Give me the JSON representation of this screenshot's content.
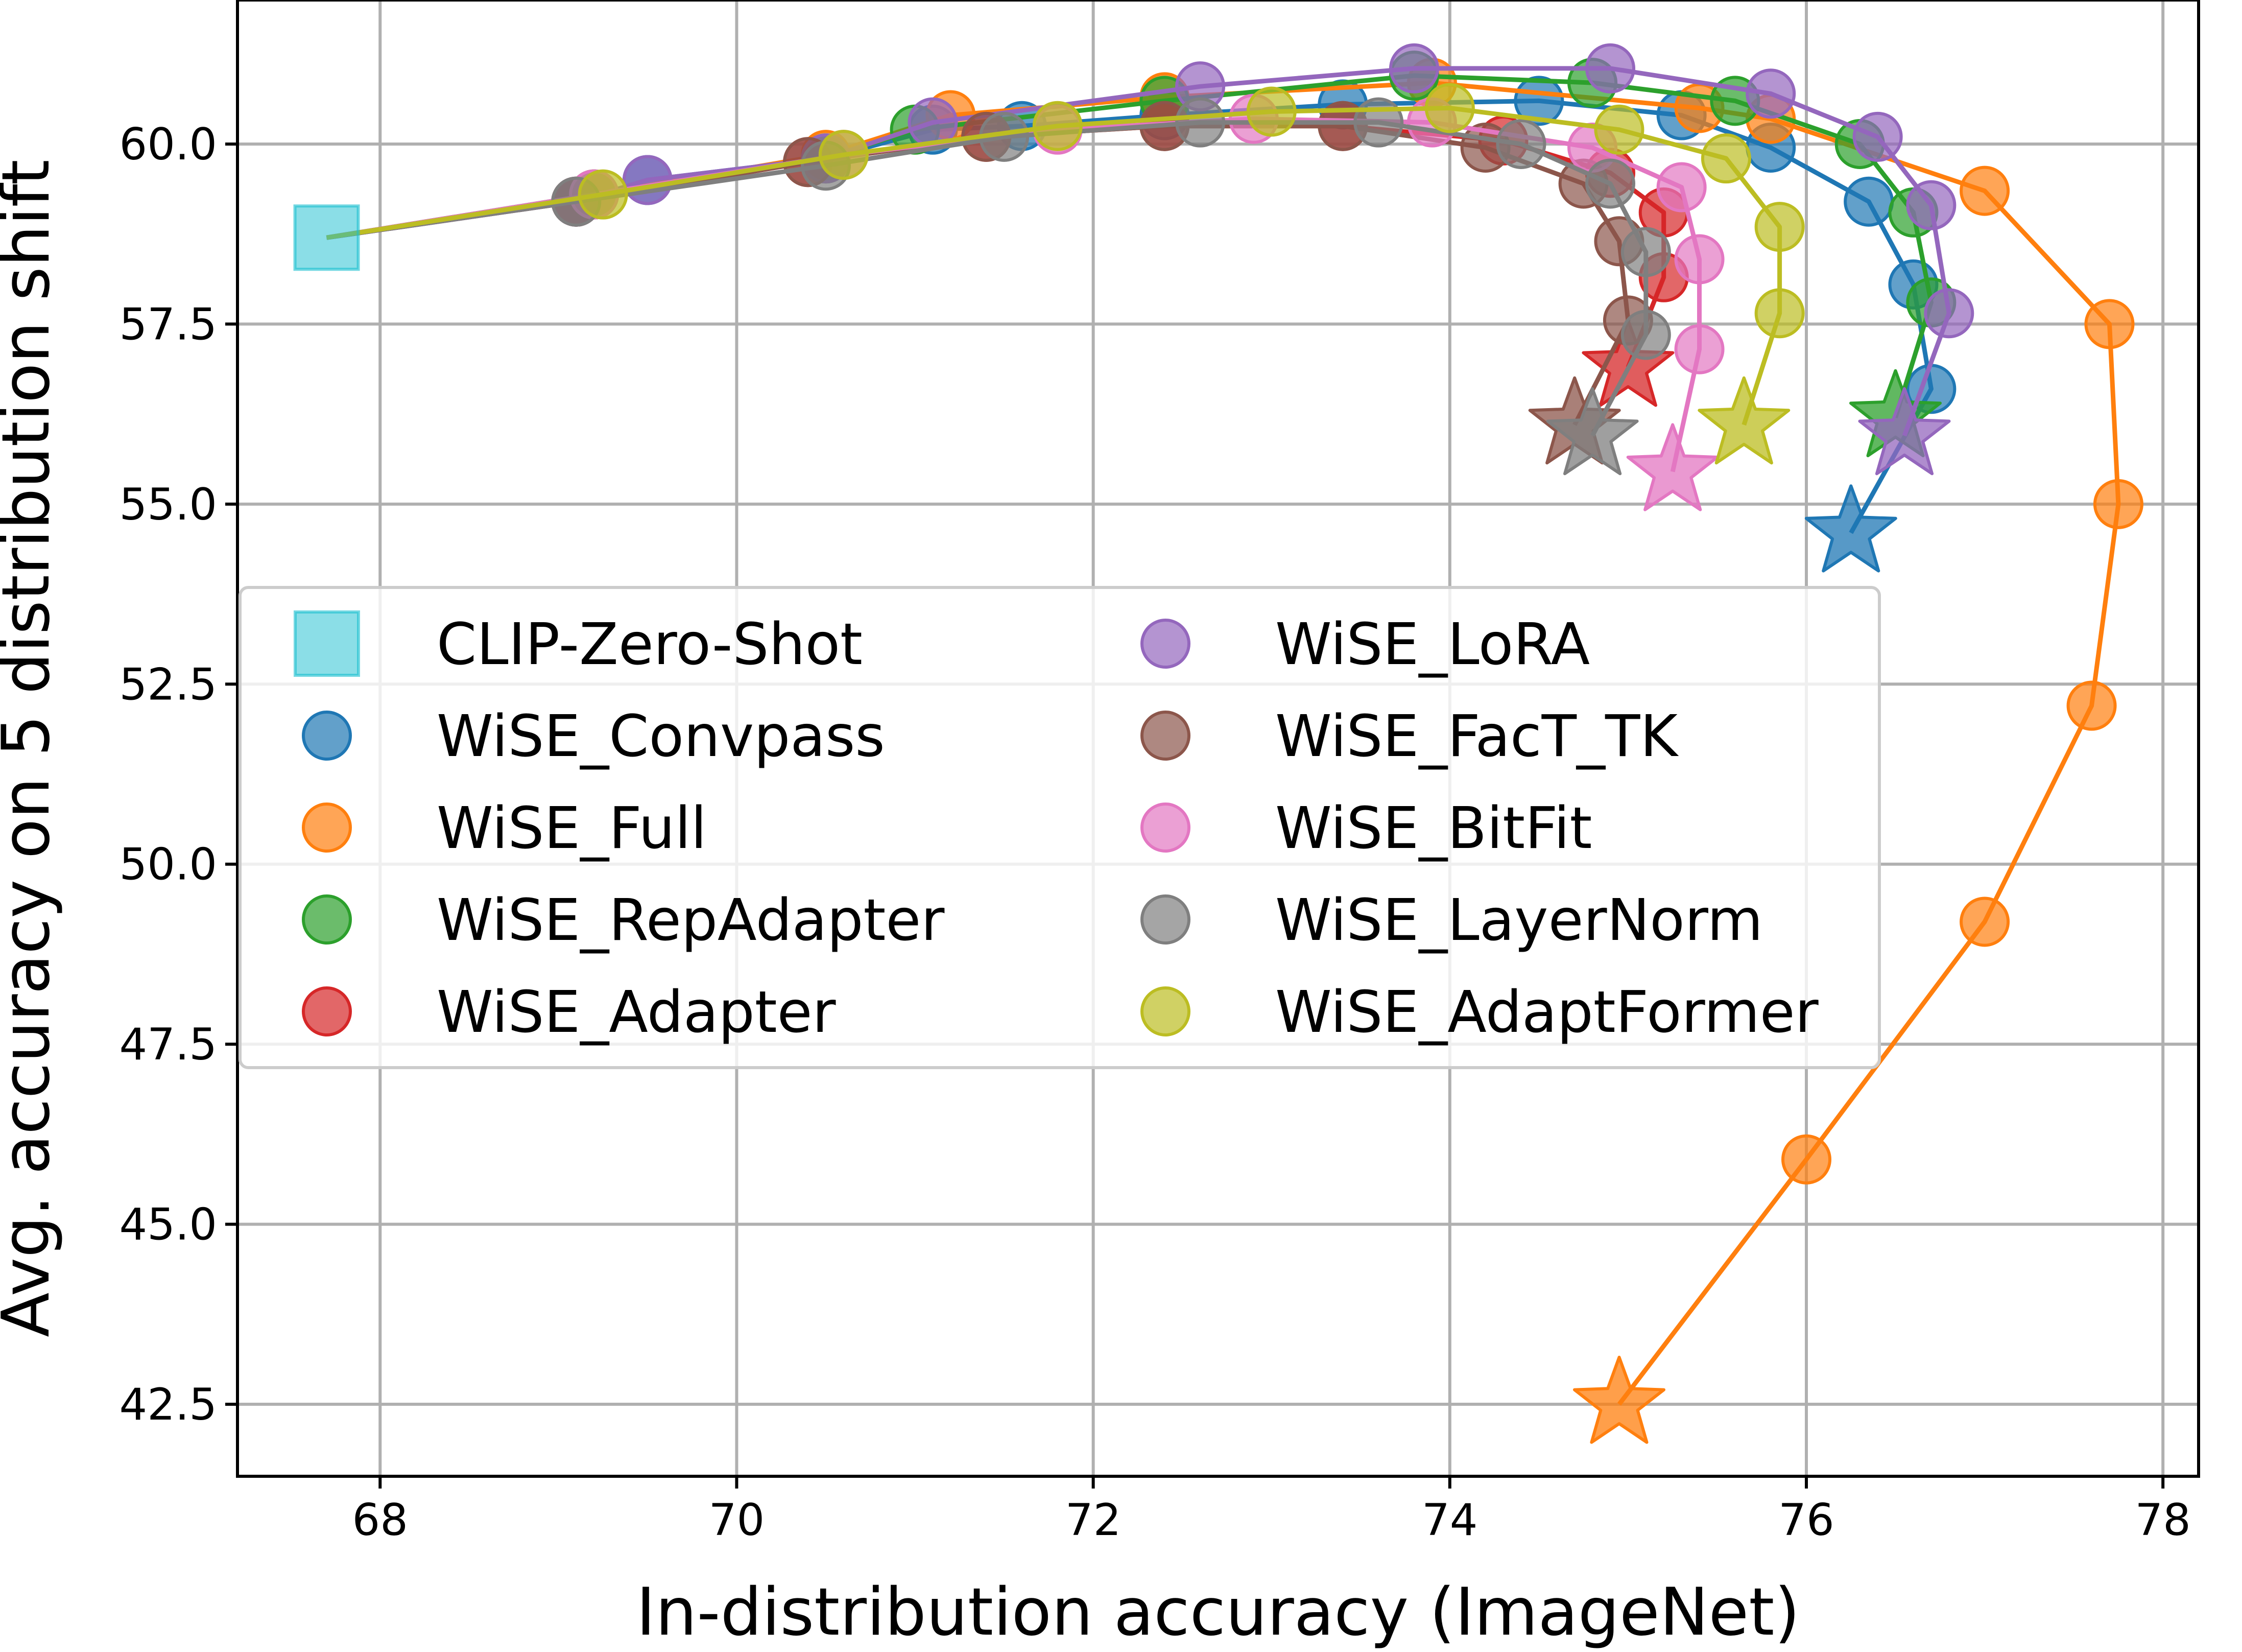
{
  "chart_data": {
    "type": "scatter",
    "title": "",
    "xlabel": "In-distribution accuracy (ImageNet)",
    "ylabel": "Avg. accuracy on 5 distribution shift",
    "xlim": [
      67.2,
      78.2
    ],
    "ylim": [
      41.5,
      62.0
    ],
    "xticks": [
      68,
      70,
      72,
      74,
      76,
      78
    ],
    "xtick_labels": [
      "68",
      "70",
      "72",
      "74",
      "76",
      "78"
    ],
    "yticks": [
      42.5,
      45.0,
      47.5,
      50.0,
      52.5,
      55.0,
      57.5,
      60.0
    ],
    "ytick_labels": [
      "42.5",
      "45.0",
      "47.5",
      "50.0",
      "52.5",
      "55.0",
      "57.5",
      "60.0"
    ],
    "grid": true,
    "legend_position": "center-left",
    "legend_columns": 2,
    "zero_shot": {
      "name": "CLIP-Zero-Shot",
      "color": "#17becf",
      "marker": "square",
      "x": 67.7,
      "y": 58.7
    },
    "series": [
      {
        "name": "WiSE_Convpass",
        "color": "#1f77b4",
        "x": [
          69.1,
          69.5,
          70.5,
          71.1,
          71.6,
          72.4,
          73.4,
          74.5,
          75.3,
          75.8,
          76.35,
          76.6,
          76.7,
          76.25
        ],
        "y": [
          59.2,
          59.5,
          59.8,
          60.2,
          60.25,
          60.4,
          60.55,
          60.6,
          60.4,
          59.95,
          59.2,
          58.05,
          56.6,
          54.6
        ]
      },
      {
        "name": "WiSE_Full",
        "color": "#ff7f0e",
        "x": [
          69.2,
          70.5,
          71.2,
          72.4,
          73.9,
          75.4,
          75.8,
          77.0,
          77.7,
          77.75,
          77.6,
          77.0,
          76.0,
          74.95
        ],
        "y": [
          59.3,
          59.85,
          60.4,
          60.65,
          60.85,
          60.5,
          60.35,
          59.35,
          57.5,
          55.0,
          52.2,
          49.2,
          45.9,
          42.5
        ]
      },
      {
        "name": "WiSE_RepAdapter",
        "color": "#2ca02c",
        "x": [
          69.2,
          70.5,
          71.0,
          72.4,
          73.8,
          74.8,
          75.6,
          76.3,
          76.6,
          76.7,
          76.5
        ],
        "y": [
          59.3,
          59.8,
          60.2,
          60.6,
          60.95,
          60.85,
          60.6,
          60.0,
          59.05,
          57.8,
          56.2
        ]
      },
      {
        "name": "WiSE_Adapter",
        "color": "#d62728",
        "x": [
          69.1,
          70.4,
          71.4,
          72.4,
          73.4,
          74.3,
          74.9,
          75.2,
          75.2,
          75.0
        ],
        "y": [
          59.2,
          59.75,
          60.1,
          60.25,
          60.25,
          60.05,
          59.6,
          59.05,
          58.15,
          56.9
        ]
      },
      {
        "name": "WiSE_LoRA",
        "color": "#9467bd",
        "x": [
          69.1,
          69.5,
          70.5,
          71.1,
          72.6,
          73.8,
          74.9,
          75.8,
          76.4,
          76.7,
          76.8,
          76.55
        ],
        "y": [
          59.2,
          59.5,
          59.8,
          60.3,
          60.8,
          61.05,
          61.05,
          60.7,
          60.1,
          59.15,
          57.65,
          55.95
        ]
      },
      {
        "name": "WiSE_FacT_TK",
        "color": "#8c564b",
        "x": [
          69.1,
          70.4,
          71.4,
          72.4,
          73.4,
          74.2,
          74.75,
          74.95,
          75.0,
          74.7
        ],
        "y": [
          59.2,
          59.75,
          60.1,
          60.25,
          60.25,
          59.95,
          59.45,
          58.65,
          57.55,
          56.1
        ]
      },
      {
        "name": "WiSE_BitFit",
        "color": "#e377c2",
        "x": [
          69.2,
          70.6,
          71.8,
          72.9,
          73.9,
          74.8,
          75.3,
          75.4,
          75.4,
          75.25
        ],
        "y": [
          59.3,
          59.85,
          60.2,
          60.35,
          60.3,
          59.95,
          59.4,
          58.4,
          57.15,
          55.45
        ]
      },
      {
        "name": "WiSE_LayerNorm",
        "color": "#7f7f7f",
        "x": [
          69.1,
          70.5,
          71.5,
          72.6,
          73.6,
          74.4,
          74.9,
          75.1,
          75.1,
          74.8
        ],
        "y": [
          59.2,
          59.7,
          60.1,
          60.3,
          60.3,
          60.0,
          59.45,
          58.5,
          57.35,
          55.95
        ]
      },
      {
        "name": "WiSE_AdaptFormer",
        "color": "#bcbd22",
        "x": [
          69.25,
          70.6,
          71.8,
          73.0,
          74.0,
          74.95,
          75.55,
          75.85,
          75.85,
          75.65
        ],
        "y": [
          59.3,
          59.85,
          60.25,
          60.45,
          60.5,
          60.2,
          59.8,
          58.85,
          57.65,
          56.1
        ]
      }
    ]
  },
  "legend": {
    "items": [
      {
        "label": "CLIP-Zero-Shot",
        "color": "#17becf",
        "marker": "square"
      },
      {
        "label": "WiSE_Convpass",
        "color": "#1f77b4",
        "marker": "circle"
      },
      {
        "label": "WiSE_Full",
        "color": "#ff7f0e",
        "marker": "circle"
      },
      {
        "label": "WiSE_RepAdapter",
        "color": "#2ca02c",
        "marker": "circle"
      },
      {
        "label": "WiSE_Adapter",
        "color": "#d62728",
        "marker": "circle"
      },
      {
        "label": "WiSE_LoRA",
        "color": "#9467bd",
        "marker": "circle"
      },
      {
        "label": "WiSE_FacT_TK",
        "color": "#8c564b",
        "marker": "circle"
      },
      {
        "label": "WiSE_BitFit",
        "color": "#e377c2",
        "marker": "circle"
      },
      {
        "label": "WiSE_LayerNorm",
        "color": "#7f7f7f",
        "marker": "circle"
      },
      {
        "label": "WiSE_AdaptFormer",
        "color": "#bcbd22",
        "marker": "circle"
      }
    ]
  }
}
